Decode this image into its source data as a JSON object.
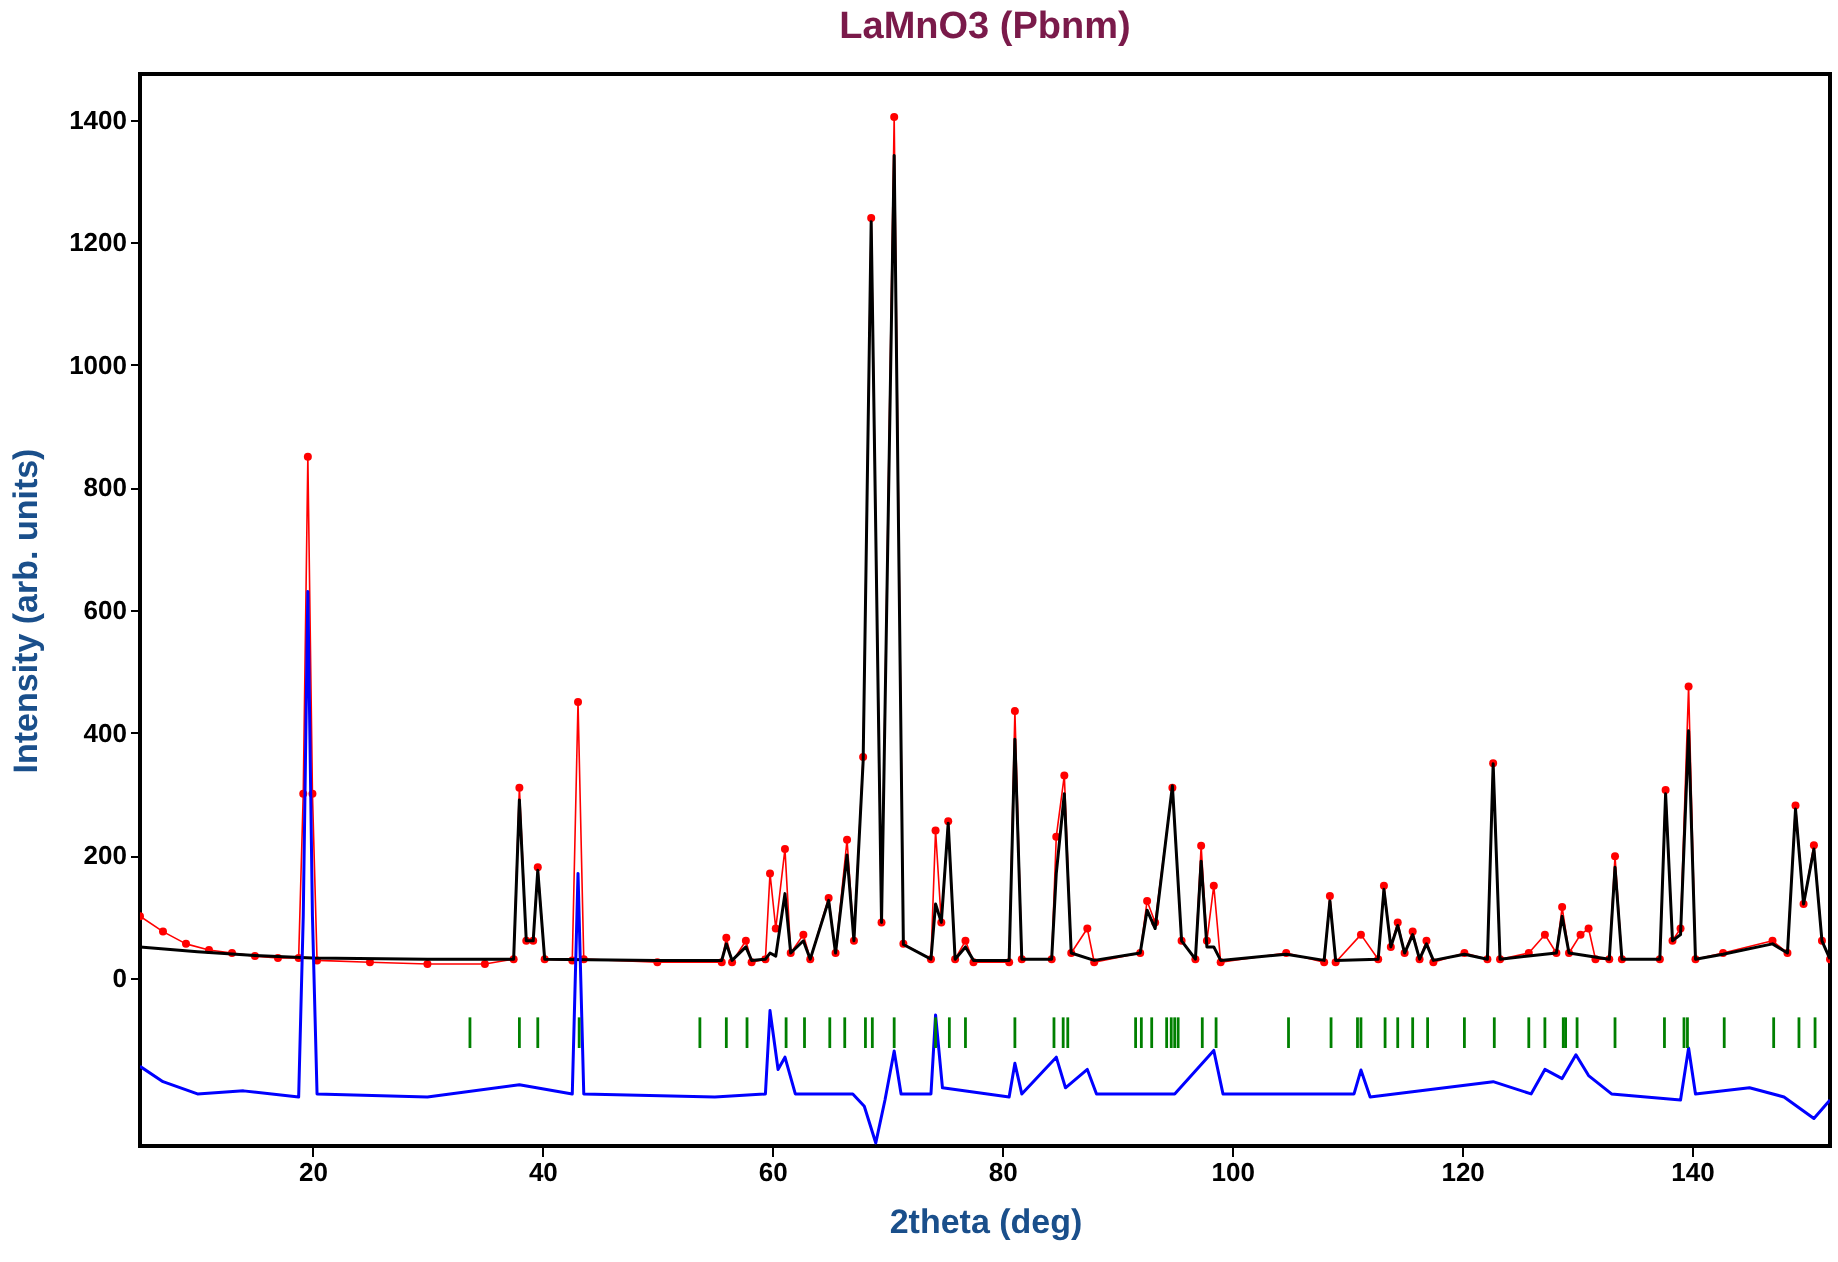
{
  "chart_data": {
    "type": "line",
    "title": "LaMnO3 (Pbnm)",
    "xlabel": "2theta (deg)",
    "ylabel": "Intensity (arb. units)",
    "xlim": [
      5,
      152
    ],
    "xticks": [
      20,
      40,
      60,
      80,
      100,
      120,
      140
    ],
    "ylim": [
      -275,
      1475
    ],
    "yticks": [
      0,
      200,
      400,
      600,
      800,
      1000,
      1200,
      1400
    ],
    "grid": false,
    "legend": false,
    "series": [
      {
        "color": "#ff0000",
        "marker": "circle",
        "x": [
          5,
          7,
          9,
          11,
          13,
          15,
          17,
          18.8,
          19.2,
          19.6,
          20.0,
          20.4,
          25,
          30,
          35,
          37.5,
          38.0,
          38.6,
          39.2,
          39.6,
          40.2,
          42.6,
          43.1,
          43.6,
          50,
          55.6,
          56.0,
          56.5,
          57.7,
          58.2,
          59.4,
          59.8,
          60.3,
          61.1,
          61.6,
          62.7,
          63.3,
          64.9,
          65.5,
          66.5,
          67.1,
          67.9,
          68.6,
          69.5,
          70.6,
          71.4,
          73.8,
          74.2,
          74.7,
          75.3,
          75.9,
          76.8,
          77.5,
          80.6,
          81.1,
          81.7,
          84.3,
          84.7,
          85.4,
          86.0,
          87.4,
          88,
          92.0,
          92.6,
          93.3,
          94.8,
          95.6,
          96.8,
          97.3,
          97.8,
          98.4,
          99.0,
          104.7,
          108.0,
          108.5,
          109.0,
          111.2,
          112.7,
          113.2,
          113.8,
          114.4,
          115.0,
          115.7,
          116.3,
          116.9,
          117.5,
          120.2,
          122.2,
          122.7,
          123.3,
          125.8,
          127.2,
          128.2,
          128.7,
          129.3,
          130.3,
          131.0,
          131.6,
          132.8,
          133.3,
          133.9,
          137.2,
          137.7,
          138.3,
          139.0,
          139.7,
          140.3,
          142.7,
          147.0,
          148.3,
          149.0,
          149.7,
          150.6,
          151.3,
          152
        ],
        "values": [
          100,
          75,
          55,
          45,
          40,
          35,
          32,
          32,
          300,
          850,
          300,
          28,
          25,
          22,
          22,
          30,
          310,
          60,
          60,
          180,
          30,
          28,
          450,
          30,
          25,
          25,
          65,
          25,
          60,
          25,
          30,
          170,
          80,
          210,
          40,
          70,
          30,
          130,
          40,
          225,
          60,
          360,
          1240,
          90,
          1405,
          55,
          30,
          240,
          90,
          255,
          30,
          60,
          25,
          25,
          435,
          30,
          30,
          230,
          330,
          40,
          80,
          25,
          40,
          125,
          90,
          310,
          60,
          30,
          215,
          60,
          150,
          25,
          40,
          25,
          133,
          25,
          70,
          30,
          150,
          50,
          90,
          40,
          75,
          30,
          60,
          25,
          40,
          30,
          350,
          30,
          40,
          70,
          40,
          115,
          40,
          70,
          80,
          30,
          30,
          198,
          30,
          30,
          306,
          60,
          80,
          475,
          30,
          40,
          60,
          40,
          281,
          120,
          216,
          60,
          30
        ]
      },
      {
        "color": "#000000",
        "marker": "none",
        "x": [
          5,
          10,
          15,
          20,
          30,
          37.5,
          38.0,
          38.6,
          39.2,
          39.6,
          40.2,
          50,
          55.6,
          56.0,
          56.5,
          57.7,
          58.2,
          59.4,
          59.8,
          60.3,
          61.1,
          61.6,
          62.7,
          63.3,
          64.9,
          65.5,
          66.5,
          67.1,
          67.9,
          68.6,
          69.5,
          70.6,
          71.4,
          73.8,
          74.2,
          74.7,
          75.3,
          75.9,
          76.8,
          77.5,
          80.6,
          81.1,
          81.7,
          84.3,
          84.7,
          85.4,
          86.0,
          88,
          92.0,
          92.6,
          93.3,
          94.8,
          95.6,
          96.8,
          97.3,
          97.8,
          98.4,
          99.0,
          104.7,
          108.0,
          108.5,
          109.0,
          112.7,
          113.2,
          113.8,
          114.4,
          115.0,
          115.7,
          116.3,
          116.9,
          117.5,
          120.2,
          122.2,
          122.7,
          123.3,
          128.2,
          128.7,
          129.3,
          132.8,
          133.3,
          133.9,
          137.2,
          137.7,
          138.3,
          139.0,
          139.7,
          140.3,
          142.7,
          147.0,
          148.3,
          149.0,
          149.7,
          150.6,
          151.3,
          152
        ],
        "values": [
          50,
          42,
          36,
          32,
          30,
          30,
          290,
          60,
          60,
          175,
          30,
          28,
          28,
          55,
          28,
          50,
          28,
          30,
          40,
          35,
          137,
          40,
          60,
          30,
          126,
          40,
          200,
          60,
          353,
          1234,
          90,
          1342,
          54,
          30,
          120,
          90,
          252,
          30,
          50,
          28,
          28,
          389,
          30,
          30,
          170,
          300,
          40,
          28,
          40,
          110,
          80,
          313,
          60,
          30,
          190,
          50,
          50,
          28,
          38,
          28,
          125,
          28,
          30,
          144,
          50,
          85,
          40,
          70,
          30,
          55,
          28,
          38,
          30,
          349,
          30,
          40,
          100,
          40,
          30,
          180,
          30,
          30,
          300,
          60,
          70,
          403,
          30,
          38,
          55,
          40,
          275,
          120,
          210,
          60,
          30
        ]
      },
      {
        "color": "#0000ff",
        "marker": "none",
        "x": [
          5,
          7,
          10,
          14,
          18.8,
          19.2,
          19.6,
          20.0,
          20.4,
          30,
          38,
          42.6,
          43.1,
          43.6,
          55,
          59.4,
          59.8,
          60.5,
          61.1,
          62,
          67,
          68.0,
          69.0,
          69.8,
          70.6,
          71.2,
          73.8,
          74.2,
          74.8,
          80.6,
          81.1,
          81.7,
          84.7,
          85.5,
          87.4,
          88.2,
          95,
          98.4,
          99.2,
          110.6,
          111.2,
          112,
          122.7,
          126,
          127.2,
          128.7,
          129.9,
          131,
          133,
          139.0,
          139.7,
          140.3,
          145,
          148,
          150.6,
          152
        ],
        "values": [
          -145,
          -170,
          -190,
          -185,
          -195,
          100,
          630,
          100,
          -190,
          -195,
          -175,
          -190,
          170,
          -190,
          -195,
          -190,
          -54,
          -150,
          -130,
          -190,
          -190,
          -210,
          -270,
          -200,
          -120,
          -190,
          -190,
          -61,
          -180,
          -195,
          -140,
          -190,
          -130,
          -180,
          -150,
          -190,
          -190,
          -119,
          -190,
          -190,
          -151,
          -195,
          -170,
          -190,
          -150,
          -165,
          -126,
          -160,
          -190,
          -200,
          -115,
          -190,
          -180,
          -195,
          -230,
          -200
        ]
      },
      {
        "type": "bar",
        "color": "#008000",
        "x": [
          33.7,
          38.0,
          39.6,
          43.2,
          53.7,
          56.0,
          57.8,
          61.2,
          62.8,
          65.0,
          66.3,
          68.1,
          68.7,
          70.6,
          74.2,
          75.4,
          76.8,
          81.1,
          84.5,
          85.3,
          85.7,
          91.6,
          92.1,
          93.0,
          94.3,
          94.7,
          95.0,
          95.3,
          97.4,
          98.6,
          104.9,
          108.6,
          110.9,
          111.2,
          113.3,
          114.4,
          115.7,
          117.0,
          120.2,
          122.8,
          125.8,
          127.2,
          128.8,
          129.0,
          130.0,
          133.3,
          137.6,
          139.3,
          139.6,
          142.8,
          147.1,
          149.3,
          150.7
        ],
        "base": [
          -115,
          -115,
          -115,
          -115,
          -115,
          -115,
          -115,
          -115,
          -115,
          -115,
          -115,
          -115,
          -115,
          -115,
          -115,
          -115,
          -115,
          -115,
          -115,
          -115,
          -115,
          -115,
          -115,
          -115,
          -115,
          -115,
          -115,
          -115,
          -115,
          -115,
          -115,
          -115,
          -115,
          -115,
          -115,
          -115,
          -115,
          -115,
          -115,
          -115,
          -115,
          -115,
          -115,
          -115,
          -115,
          -115,
          -115,
          -115,
          -115,
          -115,
          -115,
          -115,
          -115
        ],
        "values": [
          50,
          50,
          50,
          50,
          50,
          50,
          50,
          50,
          50,
          50,
          50,
          50,
          50,
          50,
          50,
          50,
          50,
          50,
          50,
          50,
          50,
          50,
          50,
          50,
          50,
          50,
          50,
          50,
          50,
          50,
          50,
          50,
          50,
          50,
          50,
          50,
          50,
          50,
          50,
          50,
          50,
          50,
          50,
          50,
          50,
          50,
          50,
          50,
          50,
          50,
          50,
          50,
          50
        ]
      }
    ]
  }
}
